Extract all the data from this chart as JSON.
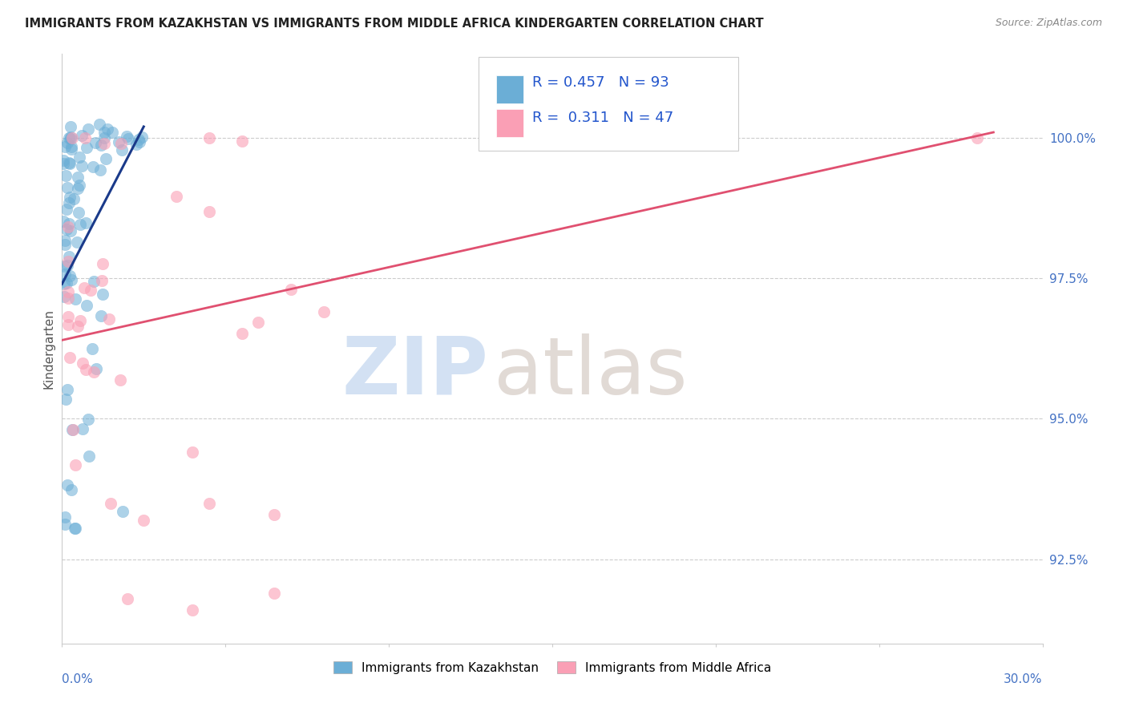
{
  "title": "IMMIGRANTS FROM KAZAKHSTAN VS IMMIGRANTS FROM MIDDLE AFRICA KINDERGARTEN CORRELATION CHART",
  "source": "Source: ZipAtlas.com",
  "ylabel": "Kindergarten",
  "yticks": [
    92.5,
    95.0,
    97.5,
    100.0
  ],
  "legend_blue_label": "Immigrants from Kazakhstan",
  "legend_pink_label": "Immigrants from Middle Africa",
  "R_blue": 0.457,
  "N_blue": 93,
  "R_pink": 0.311,
  "N_pink": 47,
  "blue_color": "#6baed6",
  "pink_color": "#fa9fb5",
  "blue_line_color": "#1a3a8a",
  "pink_line_color": "#e05070",
  "xlim": [
    0.0,
    0.3
  ],
  "ylim": [
    91.0,
    101.5
  ],
  "blue_line_x": [
    0.0,
    0.025
  ],
  "blue_line_y": [
    97.4,
    100.2
  ],
  "pink_line_x": [
    0.0,
    0.285
  ],
  "pink_line_y": [
    96.4,
    100.1
  ]
}
